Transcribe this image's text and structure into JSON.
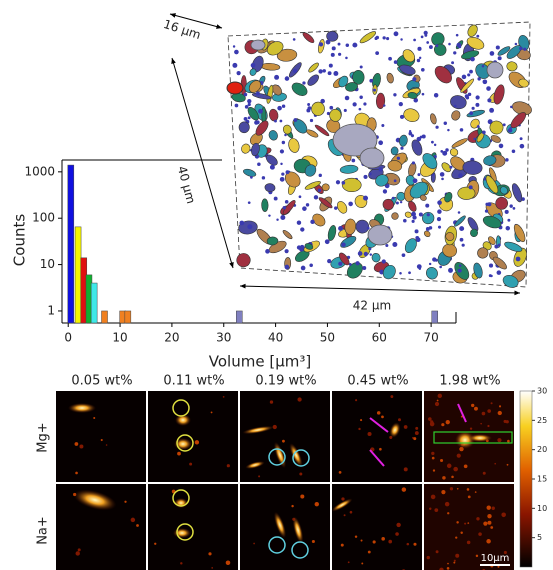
{
  "chart_data": {
    "type": "bar",
    "x_label": "Volume [µm³]",
    "y_label": "Counts",
    "x": [
      0.5,
      1.9,
      3,
      4,
      5,
      7,
      10.5,
      11.5,
      33,
      70.7
    ],
    "values": [
      1400,
      65,
      14,
      6,
      4,
      1,
      1,
      1,
      1,
      1
    ],
    "colors": [
      "#1010e0",
      "#f5f500",
      "#e01010",
      "#10b030",
      "#40e8e8",
      "#f08020",
      "#f08020",
      "#f08020",
      "#8080c0",
      "#8080c0"
    ],
    "xlim": [
      -1.2,
      74.8
    ],
    "xticks": [
      0,
      10,
      20,
      30,
      40,
      50,
      60,
      70
    ],
    "ylim": [
      0.55,
      1800
    ],
    "yticks": [
      1,
      10,
      100,
      1000
    ],
    "log_y": true
  },
  "rendering": {
    "labels": [
      "16 µm",
      "40 µm",
      "42 µm"
    ]
  },
  "micrographs": {
    "columns": [
      "0.05 wt%",
      "0.11 wt%",
      "0.19 wt%",
      "0.45 wt%",
      "1.98 wt%"
    ],
    "rows": [
      "Mg+",
      "Na+"
    ],
    "colorbar": {
      "lim": [
        0,
        30
      ],
      "ticks": [
        5,
        10,
        15,
        20,
        25,
        30
      ]
    },
    "scale_bar": "10µm"
  }
}
